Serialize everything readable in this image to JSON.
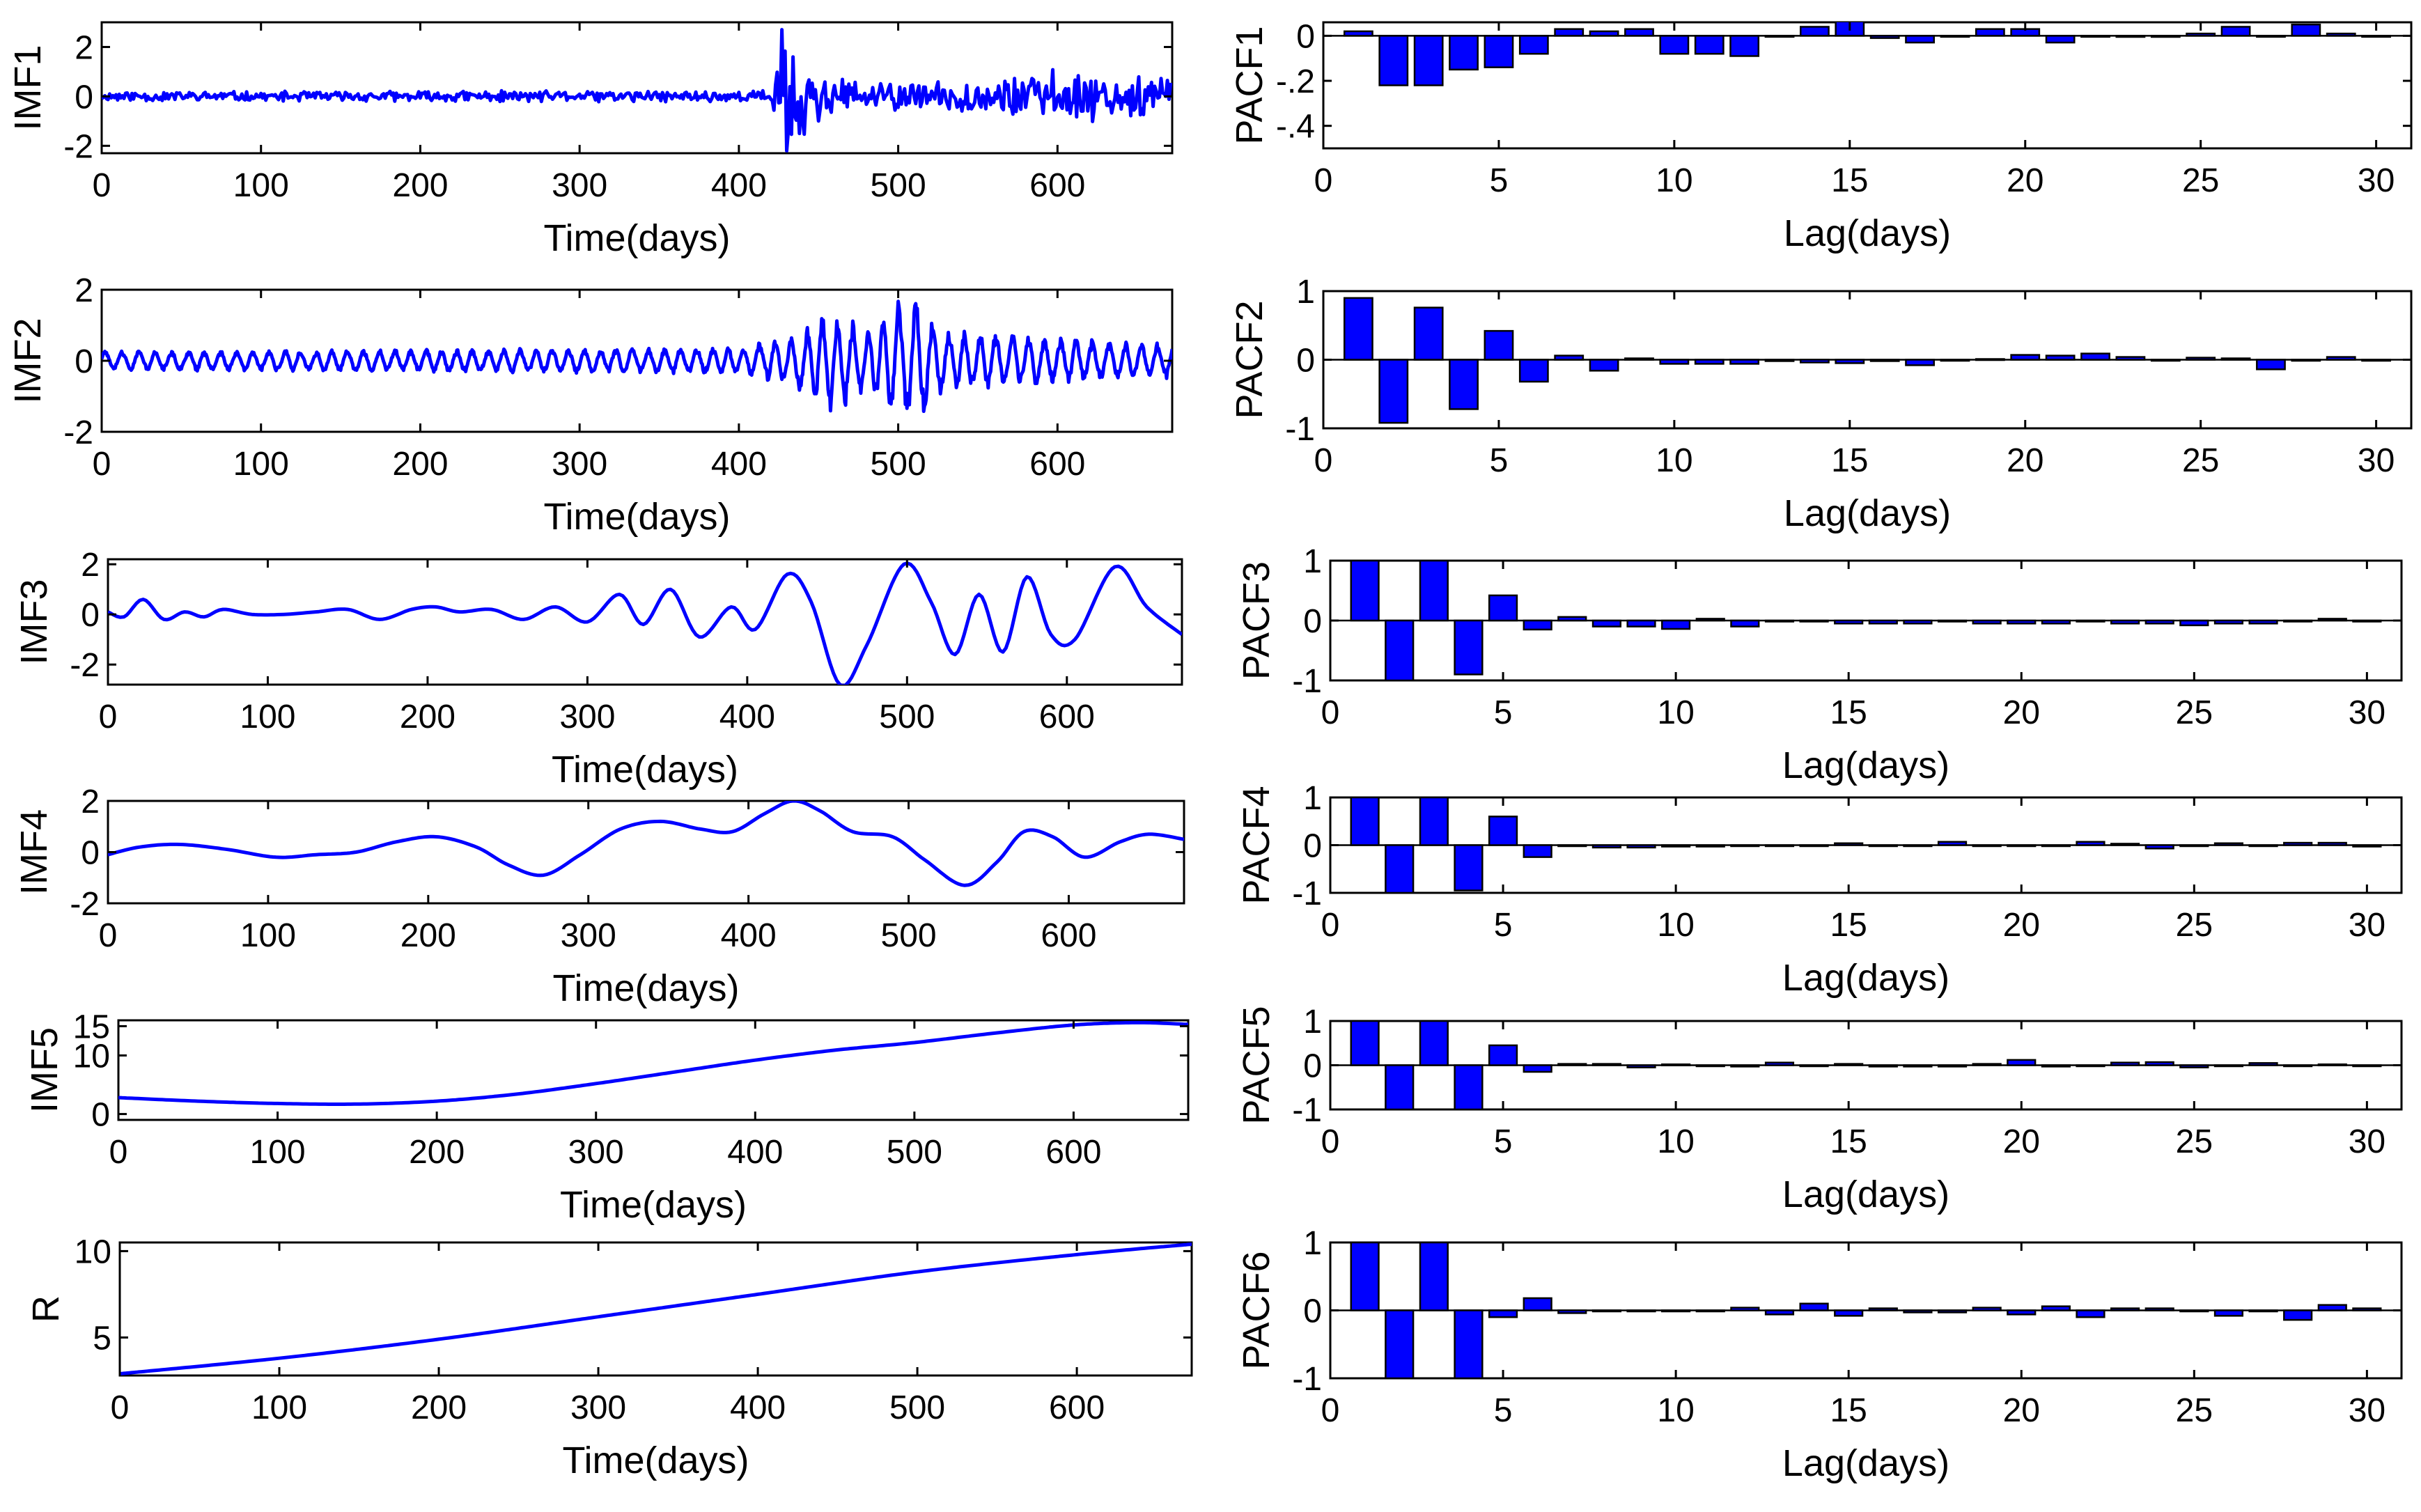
{
  "figure_title": "",
  "chart_data": [
    {
      "type": "line",
      "name": "IMF1",
      "ylabel": "IMF1",
      "xlabel": "Time(days)",
      "xlim": [
        0,
        672
      ],
      "xticks": [
        0,
        100,
        200,
        300,
        400,
        500,
        600
      ],
      "ylim": [
        -2.3,
        3
      ],
      "yticks": [
        -2,
        0,
        2
      ],
      "signal": {
        "kind": "noise",
        "seed": 11,
        "n": 672,
        "envelope": [
          [
            0,
            0.15
          ],
          [
            420,
            0.2
          ],
          [
            425,
            1.3
          ],
          [
            432,
            2.5
          ],
          [
            440,
            1.8
          ],
          [
            455,
            0.7
          ],
          [
            480,
            0.45
          ],
          [
            560,
            0.55
          ],
          [
            600,
            0.9
          ],
          [
            672,
            0.6
          ]
        ],
        "spikes": [
          [
            427,
            2.7
          ],
          [
            430,
            -2.2
          ],
          [
            434,
            1.6
          ],
          [
            438,
            -1.5
          ]
        ]
      }
    },
    {
      "type": "line",
      "name": "IMF2",
      "ylabel": "IMF2",
      "xlabel": "Time(days)",
      "xlim": [
        0,
        672
      ],
      "xticks": [
        0,
        100,
        200,
        300,
        400,
        500,
        600
      ],
      "ylim": [
        -2,
        2
      ],
      "yticks": [
        -2,
        0,
        2
      ],
      "signal": {
        "kind": "osc",
        "period": 10,
        "seed": 23,
        "n": 672,
        "envelope": [
          [
            0,
            0.25
          ],
          [
            400,
            0.35
          ],
          [
            430,
            0.6
          ],
          [
            460,
            1.4
          ],
          [
            480,
            0.8
          ],
          [
            500,
            1.6
          ],
          [
            512,
            1.6
          ],
          [
            530,
            0.8
          ],
          [
            600,
            0.6
          ],
          [
            672,
            0.45
          ]
        ]
      }
    },
    {
      "type": "line",
      "name": "IMF3",
      "ylabel": "IMF3",
      "xlabel": "Time(days)",
      "xlim": [
        0,
        672
      ],
      "xticks": [
        0,
        100,
        200,
        300,
        400,
        500,
        600
      ],
      "ylim": [
        -2.8,
        2.2
      ],
      "yticks": [
        -2,
        0,
        2
      ],
      "signal": {
        "kind": "spline",
        "points": [
          [
            0,
            0.1
          ],
          [
            10,
            -0.1
          ],
          [
            22,
            0.6
          ],
          [
            35,
            -0.2
          ],
          [
            48,
            0.1
          ],
          [
            60,
            -0.1
          ],
          [
            72,
            0.2
          ],
          [
            90,
            0.0
          ],
          [
            110,
            0.0
          ],
          [
            130,
            0.1
          ],
          [
            150,
            0.2
          ],
          [
            170,
            -0.2
          ],
          [
            190,
            0.2
          ],
          [
            205,
            0.3
          ],
          [
            220,
            0.1
          ],
          [
            240,
            0.2
          ],
          [
            260,
            -0.2
          ],
          [
            280,
            0.3
          ],
          [
            300,
            -0.3
          ],
          [
            320,
            0.8
          ],
          [
            335,
            -0.4
          ],
          [
            352,
            1.0
          ],
          [
            370,
            -0.9
          ],
          [
            390,
            0.3
          ],
          [
            405,
            -0.6
          ],
          [
            425,
            1.6
          ],
          [
            440,
            0.5
          ],
          [
            458,
            -2.8
          ],
          [
            475,
            -1.2
          ],
          [
            498,
            2.0
          ],
          [
            515,
            0.5
          ],
          [
            530,
            -1.6
          ],
          [
            545,
            0.8
          ],
          [
            560,
            -1.5
          ],
          [
            575,
            1.5
          ],
          [
            590,
            -0.8
          ],
          [
            605,
            -1.0
          ],
          [
            630,
            1.9
          ],
          [
            650,
            0.3
          ],
          [
            672,
            -0.8
          ]
        ]
      }
    },
    {
      "type": "line",
      "name": "IMF4",
      "ylabel": "IMF4",
      "xlabel": "Time(days)",
      "xlim": [
        0,
        672
      ],
      "xticks": [
        0,
        100,
        200,
        300,
        400,
        500,
        600
      ],
      "ylim": [
        -2,
        2
      ],
      "yticks": [
        -2,
        0,
        2
      ],
      "signal": {
        "kind": "spline",
        "points": [
          [
            0,
            -0.1
          ],
          [
            20,
            0.2
          ],
          [
            45,
            0.3
          ],
          [
            75,
            0.1
          ],
          [
            105,
            -0.2
          ],
          [
            130,
            -0.1
          ],
          [
            155,
            0.0
          ],
          [
            180,
            0.4
          ],
          [
            205,
            0.6
          ],
          [
            230,
            0.2
          ],
          [
            250,
            -0.5
          ],
          [
            272,
            -0.9
          ],
          [
            295,
            -0.1
          ],
          [
            320,
            0.9
          ],
          [
            345,
            1.2
          ],
          [
            370,
            0.9
          ],
          [
            390,
            0.8
          ],
          [
            410,
            1.5
          ],
          [
            428,
            2.0
          ],
          [
            445,
            1.6
          ],
          [
            465,
            0.8
          ],
          [
            490,
            0.6
          ],
          [
            510,
            -0.3
          ],
          [
            535,
            -1.3
          ],
          [
            555,
            -0.4
          ],
          [
            572,
            0.8
          ],
          [
            590,
            0.6
          ],
          [
            610,
            -0.2
          ],
          [
            632,
            0.4
          ],
          [
            650,
            0.7
          ],
          [
            672,
            0.5
          ]
        ]
      }
    },
    {
      "type": "line",
      "name": "IMF5",
      "ylabel": "IMF5",
      "xlabel": "Time(days)",
      "xlim": [
        0,
        672
      ],
      "xticks": [
        0,
        100,
        200,
        300,
        400,
        500,
        600
      ],
      "ylim": [
        -1,
        16
      ],
      "yticks": [
        0,
        10,
        15
      ],
      "signal": {
        "kind": "spline",
        "points": [
          [
            0,
            2.8
          ],
          [
            50,
            2.2
          ],
          [
            100,
            1.8
          ],
          [
            150,
            1.7
          ],
          [
            200,
            2.2
          ],
          [
            250,
            3.4
          ],
          [
            300,
            5.2
          ],
          [
            350,
            7.2
          ],
          [
            400,
            9.2
          ],
          [
            450,
            10.9
          ],
          [
            500,
            12.2
          ],
          [
            550,
            13.8
          ],
          [
            600,
            15.2
          ],
          [
            640,
            15.6
          ],
          [
            672,
            15.3
          ]
        ]
      }
    },
    {
      "type": "line",
      "name": "R",
      "ylabel": "R",
      "xlabel": "Time(days)",
      "xlim": [
        0,
        672
      ],
      "xticks": [
        0,
        100,
        200,
        300,
        400,
        500,
        600
      ],
      "ylim": [
        2.8,
        10.5
      ],
      "yticks": [
        5,
        10
      ],
      "signal": {
        "kind": "spline",
        "points": [
          [
            0,
            2.9
          ],
          [
            100,
            3.8
          ],
          [
            200,
            4.9
          ],
          [
            300,
            6.2
          ],
          [
            400,
            7.5
          ],
          [
            500,
            8.8
          ],
          [
            600,
            9.8
          ],
          [
            672,
            10.4
          ]
        ]
      }
    },
    {
      "type": "bar",
      "name": "PACF1",
      "ylabel": "PACF1",
      "xlabel": "Lag(days)",
      "xlim": [
        0,
        31
      ],
      "xticks": [
        0,
        5,
        10,
        15,
        20,
        25,
        30
      ],
      "ylim": [
        -0.5,
        0.06
      ],
      "yticks": [
        -0.4,
        -0.2,
        0
      ],
      "lags": [
        1,
        2,
        3,
        4,
        5,
        6,
        7,
        8,
        9,
        10,
        11,
        12,
        13,
        14,
        15,
        16,
        17,
        18,
        19,
        20,
        21,
        22,
        23,
        24,
        25,
        26,
        27,
        28,
        29,
        30
      ],
      "values": [
        0.02,
        -0.22,
        -0.22,
        -0.15,
        -0.14,
        -0.08,
        0.03,
        0.02,
        0.03,
        -0.08,
        -0.08,
        -0.09,
        0.0,
        0.04,
        0.07,
        -0.01,
        -0.03,
        0.0,
        0.03,
        0.03,
        -0.03,
        0.0,
        -0.005,
        -0.005,
        0.01,
        0.04,
        0.0,
        0.05,
        0.01,
        0.0
      ]
    },
    {
      "type": "bar",
      "name": "PACF2",
      "ylabel": "PACF2",
      "xlabel": "Lag(days)",
      "xlim": [
        0,
        31
      ],
      "xticks": [
        0,
        5,
        10,
        15,
        20,
        25,
        30
      ],
      "ylim": [
        -1,
        1
      ],
      "yticks": [
        -1,
        0,
        1
      ],
      "lags": [
        1,
        2,
        3,
        4,
        5,
        6,
        7,
        8,
        9,
        10,
        11,
        12,
        13,
        14,
        15,
        16,
        17,
        18,
        19,
        20,
        21,
        22,
        23,
        24,
        25,
        26,
        27,
        28,
        29,
        30
      ],
      "values": [
        0.9,
        -0.92,
        0.76,
        -0.72,
        0.42,
        -0.32,
        0.06,
        -0.16,
        0.02,
        -0.06,
        -0.06,
        -0.06,
        -0.02,
        -0.04,
        -0.05,
        -0.02,
        -0.08,
        0.0,
        0.01,
        0.07,
        0.06,
        0.09,
        0.04,
        0.0,
        0.03,
        0.02,
        -0.14,
        0.0,
        0.04,
        0.0
      ]
    },
    {
      "type": "bar",
      "name": "PACF3",
      "ylabel": "PACF3",
      "xlabel": "Lag(days)",
      "xlim": [
        0,
        31
      ],
      "xticks": [
        0,
        5,
        10,
        15,
        20,
        25,
        30
      ],
      "ylim": [
        -1,
        1
      ],
      "yticks": [
        -1,
        0,
        1
      ],
      "lags": [
        1,
        2,
        3,
        4,
        5,
        6,
        7,
        8,
        9,
        10,
        11,
        12,
        13,
        14,
        15,
        16,
        17,
        18,
        19,
        20,
        21,
        22,
        23,
        24,
        25,
        26,
        27,
        28,
        29,
        30
      ],
      "values": [
        1.0,
        -1.0,
        1.0,
        -0.9,
        0.42,
        -0.15,
        0.06,
        -0.1,
        -0.1,
        -0.14,
        0.03,
        -0.1,
        0.0,
        0.0,
        -0.05,
        -0.05,
        -0.05,
        0.0,
        -0.05,
        -0.05,
        -0.05,
        0.0,
        -0.05,
        -0.05,
        -0.08,
        -0.05,
        -0.05,
        0.0,
        0.03,
        0.0
      ]
    },
    {
      "type": "bar",
      "name": "PACF4",
      "ylabel": "PACF4",
      "xlabel": "Lag(days)",
      "xlim": [
        0,
        31
      ],
      "xticks": [
        0,
        5,
        10,
        15,
        20,
        25,
        30
      ],
      "ylim": [
        -1,
        1
      ],
      "yticks": [
        -1,
        0,
        1
      ],
      "lags": [
        1,
        2,
        3,
        4,
        5,
        6,
        7,
        8,
        9,
        10,
        11,
        12,
        13,
        14,
        15,
        16,
        17,
        18,
        19,
        20,
        21,
        22,
        23,
        24,
        25,
        26,
        27,
        28,
        29,
        30
      ],
      "values": [
        1.0,
        -1.0,
        1.0,
        -0.95,
        0.6,
        -0.25,
        0.0,
        -0.05,
        -0.05,
        -0.03,
        -0.03,
        0.0,
        0.0,
        0.0,
        0.04,
        0.0,
        0.0,
        0.07,
        0.0,
        0.0,
        0.0,
        0.07,
        0.03,
        -0.07,
        0.0,
        0.04,
        0.0,
        0.05,
        0.05,
        -0.03
      ]
    },
    {
      "type": "bar",
      "name": "PACF5",
      "ylabel": "PACF5",
      "xlabel": "Lag(days)",
      "xlim": [
        0,
        31
      ],
      "xticks": [
        0,
        5,
        10,
        15,
        20,
        25,
        30
      ],
      "ylim": [
        -1,
        1
      ],
      "yticks": [
        -1,
        0,
        1
      ],
      "lags": [
        1,
        2,
        3,
        4,
        5,
        6,
        7,
        8,
        9,
        10,
        11,
        12,
        13,
        14,
        15,
        16,
        17,
        18,
        19,
        20,
        21,
        22,
        23,
        24,
        25,
        26,
        27,
        28,
        29,
        30
      ],
      "values": [
        1.0,
        -1.0,
        1.0,
        -1.0,
        0.45,
        -0.15,
        0.03,
        0.03,
        -0.05,
        0.02,
        0.0,
        -0.03,
        0.06,
        0.0,
        0.03,
        -0.03,
        -0.03,
        -0.03,
        0.03,
        0.12,
        -0.03,
        0.0,
        0.06,
        0.07,
        -0.05,
        0.0,
        0.05,
        0.0,
        0.02,
        0.0
      ]
    },
    {
      "type": "bar",
      "name": "PACF6",
      "ylabel": "PACF6",
      "xlabel": "Lag(days)",
      "xlim": [
        0,
        31
      ],
      "xticks": [
        0,
        5,
        10,
        15,
        20,
        25,
        30
      ],
      "ylim": [
        -1,
        1
      ],
      "yticks": [
        -1,
        0,
        1
      ],
      "lags": [
        1,
        2,
        3,
        4,
        5,
        6,
        7,
        8,
        9,
        10,
        11,
        12,
        13,
        14,
        15,
        16,
        17,
        18,
        19,
        20,
        21,
        22,
        23,
        24,
        25,
        26,
        27,
        28,
        29,
        30
      ],
      "values": [
        1.0,
        -1.0,
        1.0,
        -1.0,
        -0.1,
        0.18,
        -0.04,
        0.0,
        0.0,
        0.0,
        0.0,
        0.04,
        -0.06,
        0.1,
        -0.08,
        0.03,
        -0.03,
        -0.03,
        0.04,
        -0.06,
        0.06,
        -0.1,
        0.03,
        0.03,
        0.0,
        -0.08,
        0.0,
        -0.14,
        0.08,
        0.03
      ]
    }
  ]
}
